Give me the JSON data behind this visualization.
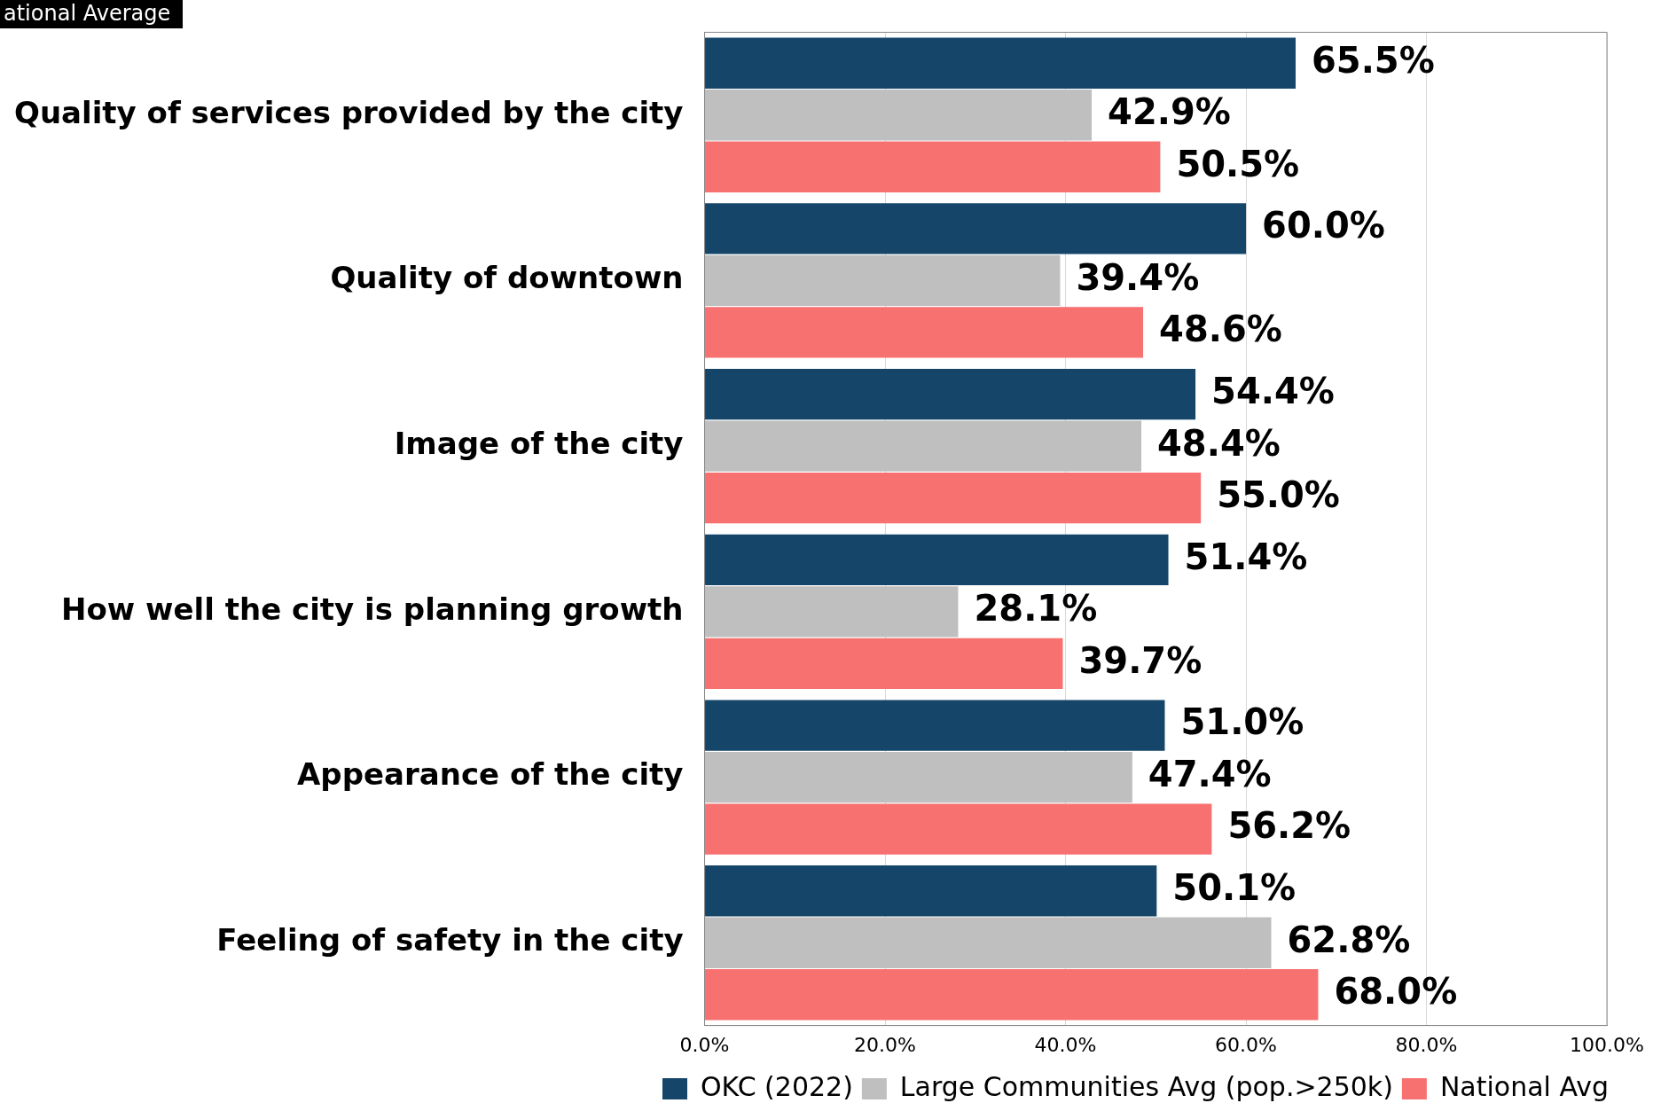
{
  "chart_data": {
    "type": "bar",
    "orientation": "horizontal",
    "annotations": [
      "ational Average"
    ],
    "categories": [
      "Quality of services provided by the city",
      "Quality of downtown",
      "Image of the city",
      "How well the city is planning growth",
      "Appearance of the city",
      "Feeling of safety in the city"
    ],
    "series": [
      {
        "name": "OKC (2022)",
        "color": "#15466a",
        "values": [
          65.5,
          60.0,
          54.4,
          51.4,
          51.0,
          50.1
        ],
        "value_labels": [
          "65.5%",
          "60.0%",
          "54.4%",
          "51.4%",
          "51.0%",
          "50.1%"
        ]
      },
      {
        "name": "Large Communities Avg (pop.>250k)",
        "color": "#bfbfbf",
        "values": [
          42.9,
          39.4,
          48.4,
          28.1,
          47.4,
          62.8
        ],
        "value_labels": [
          "42.9%",
          "39.4%",
          "48.4%",
          "28.1%",
          "47.4%",
          "62.8%"
        ]
      },
      {
        "name": "National Avg",
        "color": "#f87171",
        "values": [
          50.5,
          48.6,
          55.0,
          39.7,
          56.2,
          68.0
        ],
        "value_labels": [
          "50.5%",
          "48.6%",
          "55.0%",
          "39.7%",
          "56.2%",
          "68.0%"
        ]
      }
    ],
    "xlim": [
      0,
      100
    ],
    "xticks": [
      {
        "value": 0,
        "label": "0.0%"
      },
      {
        "value": 20,
        "label": "20.0%"
      },
      {
        "value": 40,
        "label": "40.0%"
      },
      {
        "value": 60,
        "label": "60.0%"
      },
      {
        "value": 80,
        "label": "80.0%"
      },
      {
        "value": 100,
        "label": "100.0%"
      }
    ],
    "grid": "x",
    "legend": "bottom right"
  }
}
